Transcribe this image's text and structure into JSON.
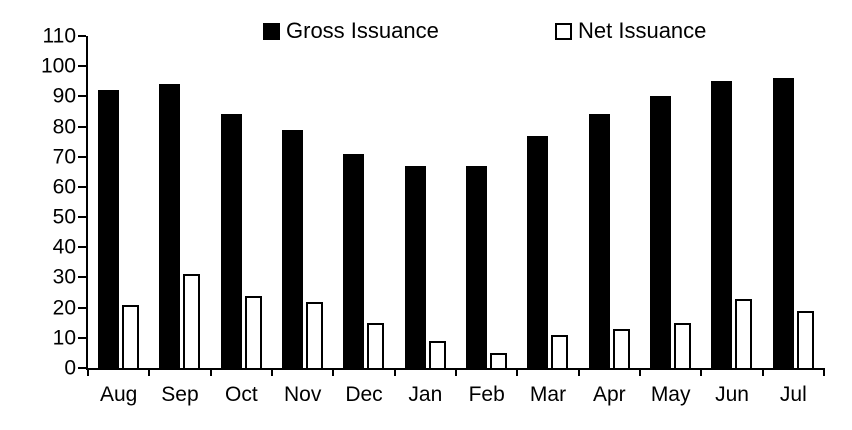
{
  "chart_data": {
    "type": "bar",
    "title": "",
    "xlabel": "",
    "ylabel": "",
    "categories": [
      "Aug",
      "Sep",
      "Oct",
      "Nov",
      "Dec",
      "Jan",
      "Feb",
      "Mar",
      "Apr",
      "May",
      "Jun",
      "Jul"
    ],
    "series": [
      {
        "name": "Gross Issuance",
        "values": [
          92,
          94,
          84,
          79,
          71,
          67,
          67,
          77,
          84,
          90,
          95,
          96
        ]
      },
      {
        "name": "Net Issuance",
        "values": [
          21,
          31,
          24,
          22,
          15,
          9,
          5,
          11,
          13,
          15,
          23,
          19
        ]
      }
    ],
    "ylim": [
      0,
      110
    ],
    "y_tick_step": 10,
    "y_ticks": [
      0,
      10,
      20,
      30,
      40,
      50,
      60,
      70,
      80,
      90,
      100,
      110
    ],
    "grid": false,
    "legend_position": "top-inside"
  },
  "legend": {
    "items": [
      {
        "label": "Gross Issuance",
        "swatch": "filled-black-square"
      },
      {
        "label": "Net Issuance",
        "swatch": "outlined-white-square"
      }
    ]
  },
  "colors": {
    "background": "#ffffff",
    "axis": "#000000",
    "text": "#000000",
    "bar_gross_fill": "#000000",
    "bar_net_fill": "#ffffff",
    "bar_net_border": "#000000"
  }
}
